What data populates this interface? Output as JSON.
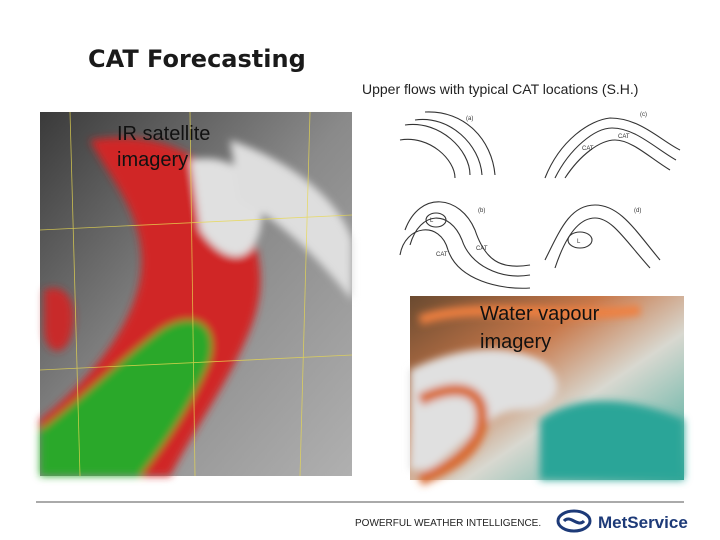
{
  "slide": {
    "title": "CAT Forecasting",
    "diagram_caption": "Upper flows with typical CAT locations (S.H.)",
    "ir_label": [
      "IR satellite",
      "imagery"
    ],
    "wv_label": [
      "Water vapour",
      "imagery"
    ],
    "diagram": {
      "panels": [
        {
          "tag": "(a)",
          "labels": []
        },
        {
          "tag": "(c)",
          "labels": [
            "CAT",
            "CAT"
          ]
        },
        {
          "tag": "(b)",
          "labels": [
            "L",
            "CAT",
            "CAT"
          ]
        },
        {
          "tag": "(d)",
          "labels": [
            "L"
          ]
        }
      ]
    },
    "footer": {
      "tagline": "POWERFUL WEATHER INTELLIGENCE.",
      "brand": "MetService"
    }
  }
}
